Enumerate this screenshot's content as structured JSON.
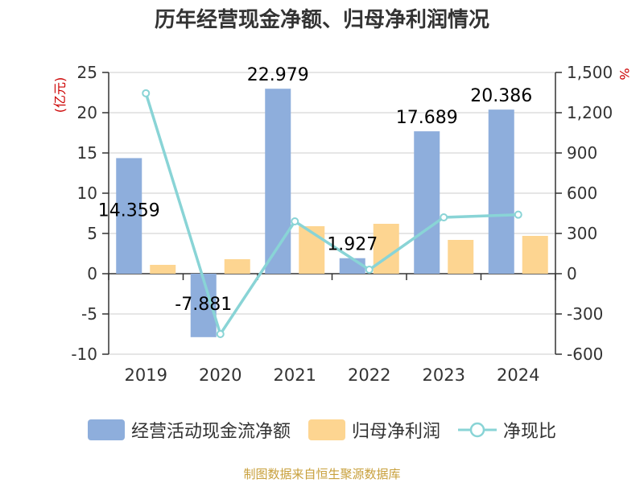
{
  "title": "历年经营现金净额、归母净利润情况",
  "source_note": "制图数据来自恒生聚源数据库",
  "colors": {
    "cash": "#8eaedc",
    "profit": "#fdd591",
    "ratio": "#89d4d6",
    "left_unit": "#cc0000",
    "right_unit": "#cc0000",
    "source": "#c8a03c",
    "axis": "#333333",
    "grid": "#cccccc"
  },
  "chart_data": {
    "type": "bar",
    "title": "历年经营现金净额、归母净利润情况",
    "categories": [
      "2019",
      "2020",
      "2021",
      "2022",
      "2023",
      "2024"
    ],
    "y_left": {
      "unit": "(亿元)",
      "range": [
        -10,
        25
      ],
      "ticks": [
        "-10",
        "-5",
        "0",
        "5",
        "10",
        "15",
        "20",
        "25"
      ]
    },
    "y_right": {
      "unit": "%",
      "range": [
        -600,
        1500
      ],
      "ticks": [
        "-600",
        "-300",
        "0",
        "300",
        "600",
        "900",
        "1,200",
        "1,500"
      ]
    },
    "grid": true,
    "legend_position": "bottom",
    "series": [
      {
        "name": "经营活动现金流净额",
        "type": "bar",
        "axis": "left",
        "values": [
          14.359,
          -7.881,
          22.979,
          1.927,
          17.689,
          20.386
        ],
        "labels": [
          "14.359",
          "-7.881",
          "22.979",
          "1.927",
          "17.689",
          "20.386"
        ]
      },
      {
        "name": "归母净利润",
        "type": "bar",
        "axis": "left",
        "values": [
          1.1,
          1.8,
          5.9,
          6.2,
          4.2,
          4.7
        ]
      },
      {
        "name": "净现比",
        "type": "line",
        "axis": "right",
        "values": [
          1345,
          -450,
          390,
          30,
          420,
          440
        ]
      }
    ]
  }
}
